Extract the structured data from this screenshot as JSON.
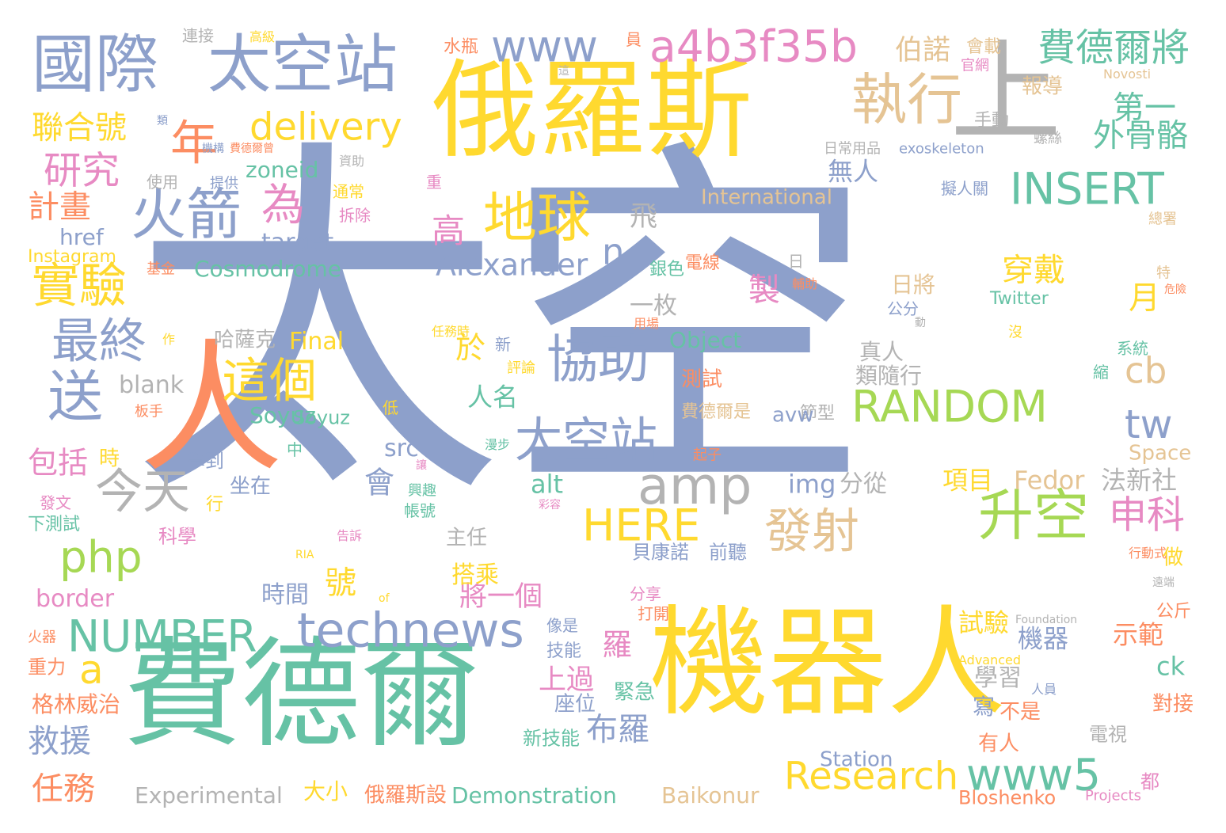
{
  "palette": {
    "slate": "#8da0cb",
    "yellow": "#ffd92f",
    "green": "#66c2a5",
    "orange": "#fc8d62",
    "pink": "#e78ac3",
    "lime": "#a6d854",
    "tan": "#e5c494",
    "grey": "#b3b3b3"
  },
  "words": [
    "太空",
    "機器人",
    "費德爾",
    "俄羅斯",
    "上",
    "國際",
    "太空站",
    "人",
    "a4b3f35b",
    "www",
    "執行",
    "費德爾將",
    "年",
    "火箭",
    "地球",
    "為",
    "delivery",
    "聯合號",
    "研究",
    "第一",
    "外骨骼",
    "INSERT",
    "RANDOM",
    "協助",
    "這個",
    "太空站",
    "amp",
    "technews",
    "NUMBER",
    "今天",
    "php",
    "發射",
    "升空",
    "申科",
    "HERE",
    "www5",
    "Research",
    "tw",
    "cb",
    "實驗",
    "最終",
    "送",
    "計畫",
    "高",
    "Alexander",
    "n",
    "飛",
    "zoneid",
    "target",
    "href",
    "無人",
    "製",
    "月",
    "穿戴",
    "於",
    "製",
    "人名",
    "blank",
    "Cosmodrome",
    "Instagram",
    "Final",
    "Object",
    "Soyuz",
    "哈薩克",
    "一枚",
    "真人",
    "類隨行",
    "日將",
    "測試",
    "節型",
    "avw",
    "費德爾是",
    "項目",
    "Fedor",
    "法新社",
    "img",
    "分從",
    "alt",
    "src",
    "會",
    "號",
    "時間",
    "將一個",
    "上過",
    "布羅",
    "羅",
    "機器",
    "試驗",
    "示範",
    "學習",
    "寫",
    "不是",
    "有人",
    "ck",
    "對接",
    "電視",
    "都",
    "Station",
    "Bloshenko",
    "Projects",
    "Demonstration",
    "Experimental",
    "Baikonur",
    "俄羅斯設",
    "大小",
    "任務",
    "救援",
    "包括",
    "border",
    "a",
    "格林威治",
    "重力",
    "火器",
    "下測試",
    "發文",
    "時",
    "學到",
    "坐在",
    "行",
    "科學",
    "主任",
    "前聽",
    "貝康諾",
    "搭乘",
    "緊急",
    "座位",
    "新技能",
    "技能",
    "像是",
    "打開",
    "分享",
    "公斤",
    "做",
    "行動式",
    "International",
    "Space",
    "Twitter",
    "Novosti",
    "exoskeleton",
    "日常用品",
    "手動",
    "螺絲",
    "報導",
    "伯諾",
    "會載",
    "水瓶",
    "連接",
    "高級",
    "員",
    "這",
    "使用",
    "提供",
    "資助",
    "基金",
    "銀色",
    "電線",
    "日",
    "輔助",
    "公分",
    "動",
    "用場",
    "任務時",
    "作",
    "評論",
    "低",
    "讓",
    "興趣",
    "帳號",
    "彩容",
    "告訴",
    "RIA",
    "of",
    "Foundation",
    "Advanced",
    "人員",
    "系統",
    "縮",
    "擬人關",
    "總署",
    "特",
    "危險",
    "遠端",
    "中",
    "漫步",
    "板手",
    "費德爾曾",
    "機構",
    "類",
    "重",
    "通常",
    "拆除",
    "新",
    "起子",
    "沒",
    "官網",
    "Soyuz"
  ]
}
